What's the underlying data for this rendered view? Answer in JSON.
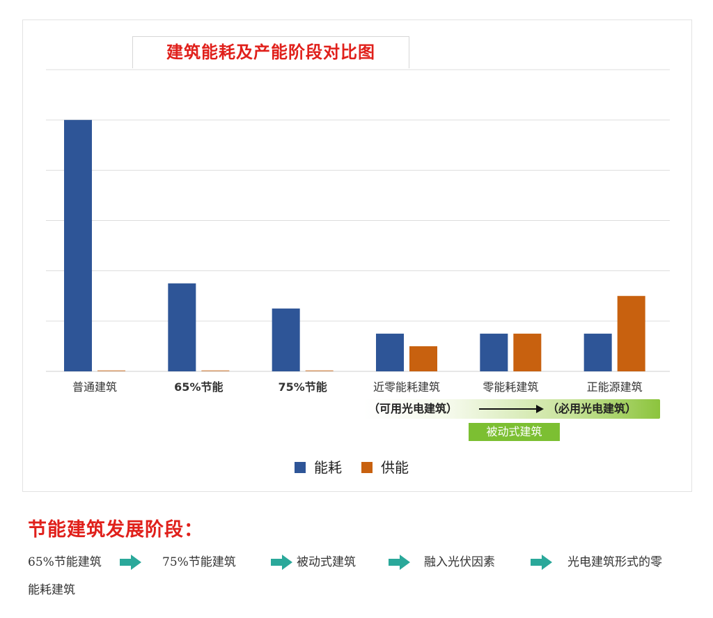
{
  "chart_data": {
    "type": "bar",
    "title": "建筑能耗及产能阶段对比图",
    "xlabel": "",
    "ylabel": "",
    "categories": [
      "普通建筑",
      "65%节能",
      "75%节能",
      "近零能耗建筑",
      "零能耗建筑",
      "正能源建筑"
    ],
    "series": [
      {
        "name": "能耗",
        "color": "#2e5597",
        "values": [
          5.0,
          1.75,
          1.25,
          0.75,
          0.75,
          0.75
        ]
      },
      {
        "name": "供能",
        "color": "#c8610f",
        "values": [
          0,
          0,
          0,
          0.5,
          0.75,
          1.5
        ]
      }
    ],
    "ylim": [
      0,
      6
    ],
    "gridline_step": 1,
    "grid": true,
    "y_axis_labels_shown": false,
    "legend_position": "bottom"
  },
  "annotations": {
    "band_left": "（可用光电建筑）",
    "band_right": "（必用光电建筑）",
    "passive_badge": "被动式建筑",
    "band_color": "#8cc43d",
    "badge_color": "#7cbf32"
  },
  "colors": {
    "title_red": "#e0201b",
    "arrow_teal": "#2aa89a"
  },
  "development": {
    "heading": "节能建筑发展阶段：",
    "stages": [
      "65%节能建筑",
      "75%节能建筑",
      "被动式建筑",
      "融入光伏因素",
      "光电建筑形式的零"
    ],
    "last_stage_continued": "能耗建筑",
    "arrow_icon": "right-arrow-icon"
  }
}
